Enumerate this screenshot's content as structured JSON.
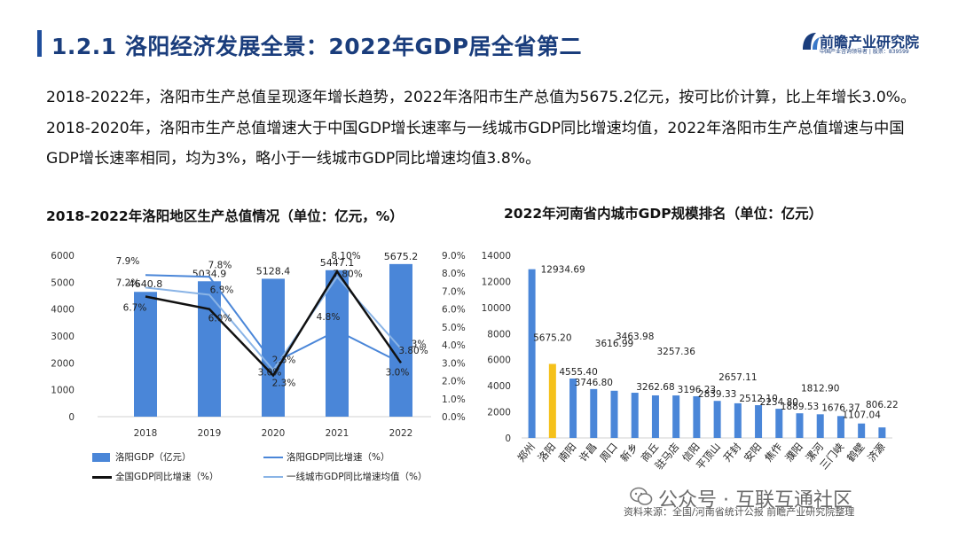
{
  "header": {
    "title": "1.2.1 洛阳经济发展全景：2022年GDP居全省第二",
    "logo_name": "前瞻产业研究院",
    "logo_sub": "中国产业咨询领导者 | 股票：839599"
  },
  "intro_text": "2018-2022年，洛阳市生产总值呈现逐年增长趋势，2022年洛阳市生产总值为5675.2亿元，按可比价计算，比上年增长3.0%。2018-2020年，洛阳市生产总值增速大于中国GDP增长速率与一线城市GDP同比增速均值，2022年洛阳市生产总值增速与中国GDP增长速率相同，均为3%，略小于一线城市GDP同比增速均值3.8%。",
  "colors": {
    "bar": "#4a86d8",
    "highlight": "#f5c11b",
    "growth": "#4a86d8",
    "national": "#111111",
    "tier1": "#8ab4e6"
  },
  "chart_data": [
    {
      "type": "bar",
      "title": "2018-2022年洛阳地区生产总值情况（单位：亿元，%）",
      "categories": [
        "2018",
        "2019",
        "2020",
        "2021",
        "2022"
      ],
      "y_ticks": [
        "0",
        "1000",
        "2000",
        "3000",
        "4000",
        "5000",
        "6000"
      ],
      "y2_ticks": [
        "0.0%",
        "1.0%",
        "2.0%",
        "3.0%",
        "4.0%",
        "5.0%",
        "6.0%",
        "7.0%",
        "8.0%",
        "9.0%"
      ],
      "ylim": [
        0,
        6000
      ],
      "y2lim": [
        0,
        9
      ],
      "series": [
        {
          "name": "洛阳GDP（亿元）",
          "kind": "bar",
          "axis": "left",
          "values": [
            4640.8,
            5034.9,
            5128.4,
            5447.1,
            5675.2
          ],
          "labels": [
            "4640.8",
            "5034.9",
            "5128.4",
            "5447.1",
            "5675.2"
          ]
        },
        {
          "name": "洛阳GDP同比增速（%）",
          "kind": "line",
          "axis": "right",
          "values": [
            7.9,
            7.8,
            3.0,
            4.8,
            3.0
          ],
          "labels": [
            "7.9%",
            "7.8%",
            "3.0%",
            "4.8%",
            "3.0%"
          ]
        },
        {
          "name": "全国GDP同比增速（%）",
          "kind": "line",
          "axis": "right",
          "values": [
            6.7,
            6.0,
            2.3,
            8.1,
            3.0
          ],
          "labels": [
            "6.7%",
            "6.0%",
            "2.3%",
            "8.10%",
            "3%"
          ]
        },
        {
          "name": "一线城市GDP同比增速均值（%）",
          "kind": "line",
          "axis": "right",
          "values": [
            7.2,
            6.8,
            2.6,
            7.8,
            3.8
          ],
          "labels": [
            "7.2%",
            "6.8%",
            "2.6%",
            "7.80%",
            "3.80%"
          ]
        }
      ]
    },
    {
      "type": "bar",
      "title": "2022年河南省内城市GDP规模排名（单位：亿元）",
      "categories": [
        "郑州",
        "洛阳",
        "南阳",
        "许昌",
        "周口",
        "新乡",
        "商丘",
        "驻马店",
        "信阳",
        "平顶山",
        "开封",
        "安阳",
        "焦作",
        "濮阳",
        "漯河",
        "三门峡",
        "鹤壁",
        "济源"
      ],
      "values": [
        12934.69,
        5675.2,
        4555.4,
        3746.8,
        3616.99,
        3463.98,
        3262.68,
        3257.36,
        3196.23,
        2839.33,
        2657.11,
        2512.1,
        2234.8,
        1889.53,
        1812.9,
        1676.37,
        1107.04,
        806.22
      ],
      "labels": [
        "12934.69",
        "5675.20",
        "4555.40",
        "3746.80",
        "3616.99",
        "3463.98",
        "3262.68",
        "3257.36",
        "3196.23",
        "2839.33",
        "2657.11",
        "2512.10",
        "2234.80",
        "1889.53",
        "1812.90",
        "1676.37",
        "1107.04",
        "806.22"
      ],
      "highlight": "洛阳",
      "y_ticks": [
        "0",
        "2000",
        "4000",
        "6000",
        "8000",
        "10000",
        "12000",
        "14000"
      ],
      "ylim": [
        0,
        14000
      ]
    }
  ],
  "footer": {
    "watermark": "公众号 · 互联互通社区",
    "source": "资料来源：全国/河南省统计公报 前瞻产业研究院整理"
  }
}
